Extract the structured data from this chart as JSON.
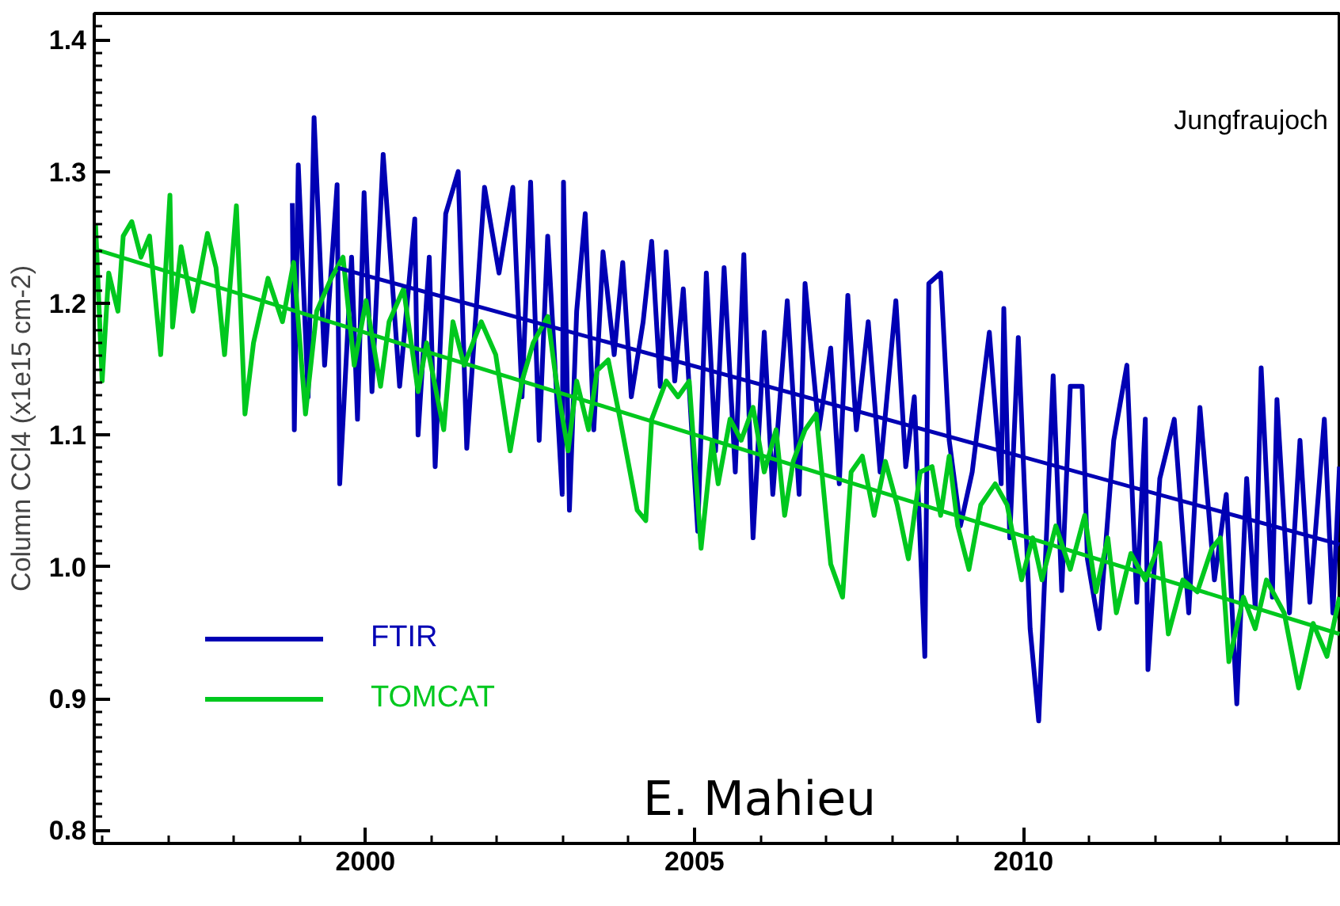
{
  "chart_data": {
    "type": "line",
    "ylabel": "Column CCl4 (x1e15 cm-2)",
    "xlim": [
      1995.88,
      2014.82
    ],
    "xticks": [
      2000,
      2005,
      2010
    ],
    "ylim": [
      0.79,
      1.42
    ],
    "yticks": [
      {
        "value": 0.8,
        "label": "0.8"
      },
      {
        "value": 0.9,
        "label": "0.9"
      },
      {
        "value": 1.0,
        "label": "1.0"
      },
      {
        "value": 1.1,
        "label": "1.1"
      },
      {
        "value": 1.2,
        "label": "1.2"
      },
      {
        "value": 1.3,
        "label": "1.3"
      },
      {
        "value": 1.4,
        "label": "1.4"
      }
    ],
    "grid": false,
    "legend": "bottom left",
    "annotations": [
      "Jungfraujoch",
      "E. Mahieu"
    ],
    "series": [
      {
        "name": "FTIR",
        "color": "#0000b4",
        "x": [
          1998.89,
          1998.92,
          1998.98,
          1999.13,
          1999.22,
          1999.38,
          1999.57,
          1999.61,
          1999.79,
          1999.88,
          1999.98,
          2000.1,
          2000.27,
          2000.52,
          2000.75,
          2000.8,
          2000.97,
          2001.06,
          2001.22,
          2001.41,
          2001.54,
          2001.81,
          2002.03,
          2002.24,
          2002.38,
          2002.51,
          2002.64,
          2002.77,
          2002.99,
          2003.01,
          2003.1,
          2003.21,
          2003.34,
          2003.47,
          2003.61,
          2003.78,
          2003.91,
          2004.04,
          2004.22,
          2004.35,
          2004.48,
          2004.57,
          2004.7,
          2004.83,
          2005.05,
          2005.18,
          2005.32,
          2005.45,
          2005.62,
          2005.75,
          2005.89,
          2006.06,
          2006.19,
          2006.41,
          2006.59,
          2006.68,
          2006.89,
          2007.07,
          2007.2,
          2007.33,
          2007.46,
          2007.64,
          2007.82,
          2008.06,
          2008.21,
          2008.34,
          2008.5,
          2008.56,
          2008.74,
          2008.87,
          2009.04,
          2009.22,
          2009.48,
          2009.66,
          2009.7,
          2009.79,
          2009.92,
          2010.1,
          2010.23,
          2010.45,
          2010.58,
          2010.71,
          2010.89,
          2010.97,
          2011.15,
          2011.37,
          2011.57,
          2011.72,
          2011.85,
          2011.89,
          2012.07,
          2012.29,
          2012.51,
          2012.68,
          2012.9,
          2013.08,
          2013.24,
          2013.39,
          2013.52,
          2013.61,
          2013.78,
          2013.85,
          2014.04,
          2014.2,
          2014.35,
          2014.57,
          2014.7,
          2014.8
        ],
        "values": [
          1.276,
          1.104,
          1.305,
          1.129,
          1.341,
          1.153,
          1.29,
          1.063,
          1.235,
          1.112,
          1.284,
          1.133,
          1.313,
          1.137,
          1.264,
          1.1,
          1.235,
          1.076,
          1.268,
          1.3,
          1.09,
          1.288,
          1.223,
          1.288,
          1.129,
          1.292,
          1.096,
          1.251,
          1.055,
          1.292,
          1.043,
          1.194,
          1.268,
          1.104,
          1.239,
          1.161,
          1.231,
          1.129,
          1.186,
          1.247,
          1.137,
          1.239,
          1.141,
          1.211,
          1.027,
          1.223,
          1.088,
          1.227,
          1.072,
          1.237,
          1.022,
          1.178,
          1.055,
          1.202,
          1.055,
          1.215,
          1.104,
          1.166,
          1.063,
          1.206,
          1.104,
          1.186,
          1.072,
          1.202,
          1.076,
          1.129,
          0.932,
          1.215,
          1.223,
          1.096,
          1.031,
          1.072,
          1.178,
          1.063,
          1.196,
          1.022,
          1.174,
          0.953,
          0.883,
          1.145,
          0.982,
          1.137,
          1.137,
          1.006,
          0.953,
          1.096,
          1.153,
          0.973,
          1.112,
          0.922,
          1.067,
          1.112,
          0.965,
          1.121,
          0.99,
          1.055,
          0.896,
          1.067,
          0.969,
          1.151,
          0.977,
          1.127,
          0.965,
          1.096,
          0.973,
          1.112,
          0.965,
          1.076
        ]
      },
      {
        "name": "TOMCAT",
        "color": "#00c81e",
        "x": [
          1995.9,
          1996.0,
          1996.1,
          1996.24,
          1996.32,
          1996.45,
          1996.59,
          1996.72,
          1996.89,
          1997.03,
          1997.07,
          1997.2,
          1997.38,
          1997.6,
          1997.73,
          1997.86,
          1998.04,
          1998.17,
          1998.3,
          1998.52,
          1998.74,
          1998.91,
          1999.09,
          1999.26,
          1999.48,
          1999.66,
          1999.83,
          2000.01,
          2000.23,
          2000.36,
          2000.58,
          2000.8,
          2000.93,
          2001.19,
          2001.33,
          2001.5,
          2001.76,
          2001.98,
          2002.2,
          2002.38,
          2002.55,
          2002.77,
          2002.9,
          2003.08,
          2003.21,
          2003.39,
          2003.52,
          2003.69,
          2003.87,
          2004.13,
          2004.26,
          2004.35,
          2004.57,
          2004.75,
          2004.92,
          2005.1,
          2005.27,
          2005.36,
          2005.54,
          2005.71,
          2005.89,
          2006.06,
          2006.24,
          2006.37,
          2006.5,
          2006.68,
          2006.85,
          2007.07,
          2007.25,
          2007.38,
          2007.55,
          2007.73,
          2007.9,
          2008.08,
          2008.25,
          2008.43,
          2008.61,
          2008.74,
          2008.87,
          2009.0,
          2009.17,
          2009.35,
          2009.57,
          2009.75,
          2009.97,
          2010.14,
          2010.28,
          2010.49,
          2010.71,
          2010.93,
          2011.1,
          2011.28,
          2011.41,
          2011.63,
          2011.85,
          2012.07,
          2012.2,
          2012.42,
          2012.64,
          2012.86,
          2012.99,
          2013.12,
          2013.34,
          2013.52,
          2013.69,
          2013.96,
          2014.18,
          2014.4,
          2014.61,
          2014.8
        ],
        "values": [
          1.26,
          1.141,
          1.223,
          1.194,
          1.251,
          1.262,
          1.235,
          1.251,
          1.161,
          1.282,
          1.182,
          1.243,
          1.194,
          1.253,
          1.227,
          1.161,
          1.274,
          1.116,
          1.17,
          1.219,
          1.186,
          1.231,
          1.116,
          1.194,
          1.219,
          1.235,
          1.153,
          1.202,
          1.137,
          1.186,
          1.211,
          1.133,
          1.17,
          1.104,
          1.186,
          1.153,
          1.186,
          1.161,
          1.088,
          1.141,
          1.17,
          1.19,
          1.141,
          1.088,
          1.141,
          1.104,
          1.149,
          1.157,
          1.112,
          1.043,
          1.035,
          1.112,
          1.141,
          1.129,
          1.141,
          1.014,
          1.096,
          1.063,
          1.112,
          1.096,
          1.121,
          1.072,
          1.104,
          1.039,
          1.08,
          1.104,
          1.116,
          1.002,
          0.977,
          1.072,
          1.084,
          1.039,
          1.08,
          1.047,
          1.006,
          1.072,
          1.076,
          1.039,
          1.084,
          1.031,
          0.998,
          1.047,
          1.063,
          1.047,
          0.99,
          1.022,
          0.99,
          1.031,
          0.998,
          1.039,
          0.981,
          1.022,
          0.965,
          1.01,
          0.99,
          1.018,
          0.949,
          0.99,
          0.981,
          1.014,
          1.022,
          0.928,
          0.977,
          0.953,
          0.99,
          0.965,
          0.908,
          0.957,
          0.932,
          0.977
        ]
      },
      {
        "type": "line",
        "color": "#0000b4",
        "x": [
          1999.58,
          2014.8
        ],
        "values": [
          1.227,
          1.017
        ]
      },
      {
        "type": "line",
        "color": "#00c81e",
        "x": [
          1995.9,
          2014.8
        ],
        "values": [
          1.241,
          0.949
        ]
      }
    ]
  }
}
